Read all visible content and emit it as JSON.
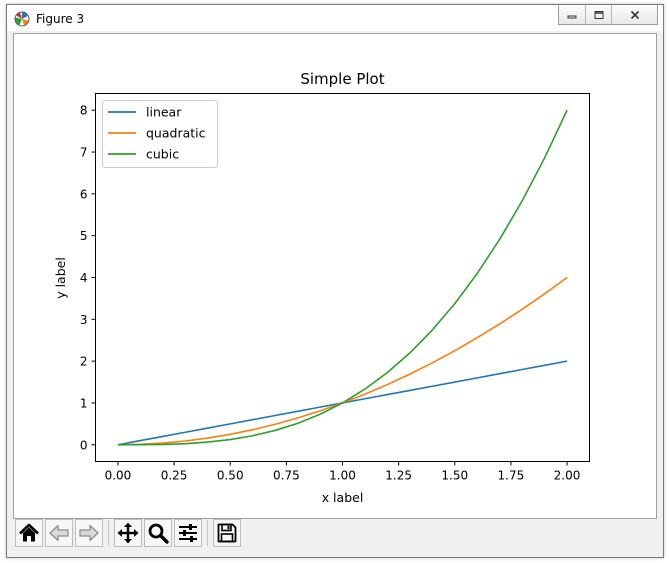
{
  "window": {
    "title": "Figure 3",
    "icon": "matplotlib-logo-icon",
    "controls": [
      "minimize-icon",
      "maximize-icon",
      "close-icon"
    ]
  },
  "toolbar": {
    "buttons": [
      {
        "id": "home",
        "icon": "home-icon",
        "tooltip": "Reset original view"
      },
      {
        "id": "back",
        "icon": "back-arrow-icon",
        "tooltip": "Back to previous view"
      },
      {
        "id": "forward",
        "icon": "forward-arrow-icon",
        "tooltip": "Forward to next view"
      },
      {
        "id": "pan",
        "icon": "pan-arrows-icon",
        "tooltip": "Pan axes"
      },
      {
        "id": "zoom",
        "icon": "zoom-magnifier-icon",
        "tooltip": "Zoom to rectangle"
      },
      {
        "id": "subplots",
        "icon": "subplots-sliders-icon",
        "tooltip": "Configure subplots"
      },
      {
        "id": "save",
        "icon": "save-disk-icon",
        "tooltip": "Save the figure"
      }
    ]
  },
  "chart_data": {
    "type": "line",
    "title": "Simple Plot",
    "xlabel": "x label",
    "ylabel": "y label",
    "xlim": [
      -0.1,
      2.1
    ],
    "ylim": [
      -0.4,
      8.4
    ],
    "xticks": [
      0.0,
      0.25,
      0.5,
      0.75,
      1.0,
      1.25,
      1.5,
      1.75,
      2.0
    ],
    "xtick_labels": [
      "0.00",
      "0.25",
      "0.50",
      "0.75",
      "1.00",
      "1.25",
      "1.50",
      "1.75",
      "2.00"
    ],
    "yticks": [
      0,
      1,
      2,
      3,
      4,
      5,
      6,
      7,
      8
    ],
    "ytick_labels": [
      "0",
      "1",
      "2",
      "3",
      "4",
      "5",
      "6",
      "7",
      "8"
    ],
    "grid": false,
    "legend_position": "top-left",
    "x": [
      0.0,
      0.1,
      0.2,
      0.3,
      0.4,
      0.5,
      0.6,
      0.7,
      0.8,
      0.9,
      1.0,
      1.1,
      1.2,
      1.3,
      1.4,
      1.5,
      1.6,
      1.7,
      1.8,
      1.9,
      2.0
    ],
    "series": [
      {
        "name": "linear",
        "color": "#1f77b4",
        "values": [
          0.0,
          0.1,
          0.2,
          0.3,
          0.4,
          0.5,
          0.6,
          0.7,
          0.8,
          0.9,
          1.0,
          1.1,
          1.2,
          1.3,
          1.4,
          1.5,
          1.6,
          1.7,
          1.8,
          1.9,
          2.0
        ]
      },
      {
        "name": "quadratic",
        "color": "#ff7f0e",
        "values": [
          0.0,
          0.01,
          0.04,
          0.09,
          0.16,
          0.25,
          0.36,
          0.49,
          0.64,
          0.81,
          1.0,
          1.21,
          1.44,
          1.69,
          1.96,
          2.25,
          2.56,
          2.89,
          3.24,
          3.61,
          4.0
        ]
      },
      {
        "name": "cubic",
        "color": "#2ca02c",
        "values": [
          0.0,
          0.001,
          0.008,
          0.027,
          0.064,
          0.125,
          0.216,
          0.343,
          0.512,
          0.729,
          1.0,
          1.331,
          1.728,
          2.197,
          2.744,
          3.375,
          4.096,
          4.913,
          5.832,
          6.859,
          8.0
        ]
      }
    ]
  }
}
